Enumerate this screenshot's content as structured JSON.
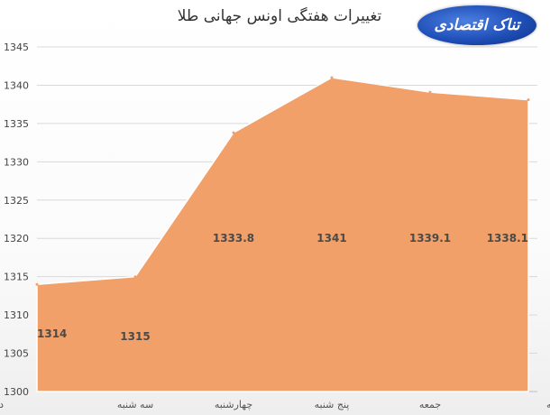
{
  "header": {
    "title": "تغییرات هفتگی اونس جهانی طلا",
    "logo_text": "تناک اقتصادی"
  },
  "chart_data": {
    "type": "area",
    "title": "تغییرات هفتگی اونس جهانی طلا",
    "categories": [
      "دوشنبه",
      "سه شنبه",
      "چهارشنبه",
      "پنج شنبه",
      "جمعه",
      "شنبه"
    ],
    "values": [
      1314,
      1315,
      1333.8,
      1341,
      1339.1,
      1338.1
    ],
    "data_labels": [
      "1314",
      "1315",
      "1333.8",
      "1341",
      "1339.1",
      "1338.1"
    ],
    "ylim": [
      1300,
      1345
    ],
    "yticks": [
      "1300",
      "1305",
      "1310",
      "1315",
      "1320",
      "1325",
      "1330",
      "1335",
      "1340",
      "1345"
    ],
    "grid": true,
    "colors": {
      "area": "#f0a068",
      "grid": "#d9d9d9"
    }
  }
}
